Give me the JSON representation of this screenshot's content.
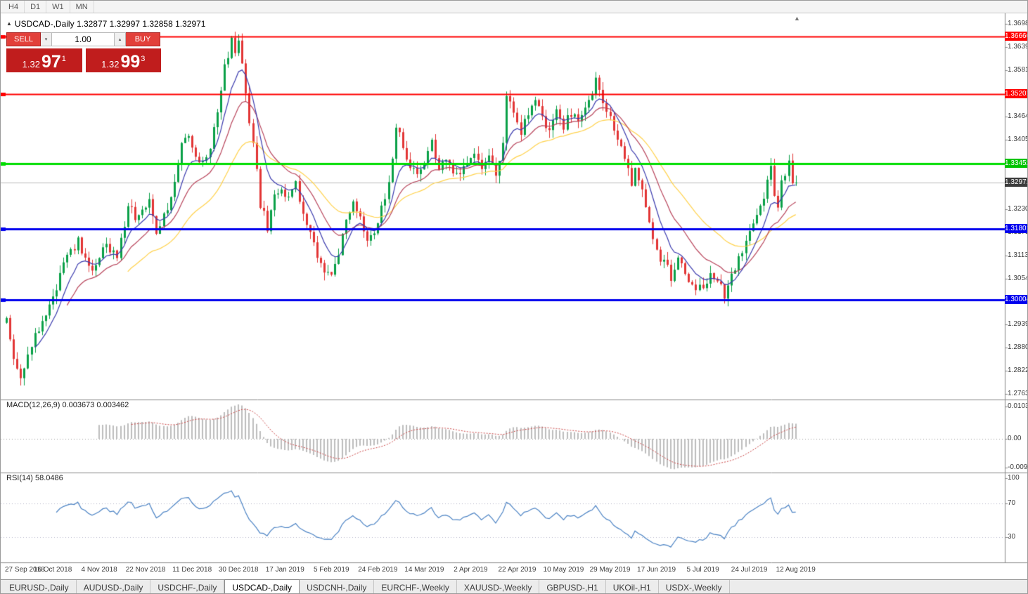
{
  "timeframe_bar": {
    "items": [
      "H4",
      "D1",
      "W1",
      "MN"
    ]
  },
  "chart": {
    "title_marker": "▲",
    "symbol_title": "USDCAD-,Daily",
    "ohlc_text": "1.32877 1.32997 1.32858 1.32971",
    "scroll_marker": "▲"
  },
  "one_click": {
    "sell_label": "SELL",
    "buy_label": "BUY",
    "volume": "1.00",
    "spin_up": "▴",
    "spin_down": "▾",
    "sell_price": {
      "prefix": "1.32",
      "pips": "97",
      "point": "1",
      "full": "1.32971"
    },
    "buy_price": {
      "prefix": "1.32",
      "pips": "99",
      "point": "3",
      "full": "1.32993"
    }
  },
  "price_axis": {
    "ticks": [
      "1.36980",
      "1.36395",
      "1.35810",
      "1.34640",
      "1.34055",
      "1.32300",
      "1.31715",
      "1.31130",
      "1.30545",
      "1.29390",
      "1.28805",
      "1.28220",
      "1.27635"
    ],
    "line_labels": [
      {
        "text": "1.36666",
        "price": 1.36666,
        "color": "#ff0000"
      },
      {
        "text": "1.35201",
        "price": 1.35201,
        "color": "#ff0000"
      },
      {
        "text": "1.33452",
        "price": 1.33452,
        "color": "#00c400"
      },
      {
        "text": "1.32971",
        "price": 1.32971,
        "color": "#3c3c3c"
      },
      {
        "text": "1.31801",
        "price": 1.31801,
        "color": "#0000ee"
      },
      {
        "text": "1.30004",
        "price": 1.30004,
        "color": "#0000ee"
      }
    ]
  },
  "macd_panel": {
    "label": "MACD(12,26,9) 0.003673 0.003462",
    "axis_labels": [
      {
        "text": "0.010311",
        "value": 0.010311
      },
      {
        "text": "0.00",
        "value": 0
      },
      {
        "text": "-0.009207",
        "value": -0.009207
      }
    ]
  },
  "rsi_panel": {
    "label": "RSI(14) 58.0486",
    "axis_labels": [
      {
        "text": "100",
        "value": 100
      },
      {
        "text": "70",
        "value": 70
      },
      {
        "text": "30",
        "value": 30
      }
    ]
  },
  "date_axis": {
    "labels": [
      "27 Sep 2018",
      "16 Oct 2018",
      "4 Nov 2018",
      "22 Nov 2018",
      "11 Dec 2018",
      "30 Dec 2018",
      "17 Jan 2019",
      "5 Feb 2019",
      "24 Feb 2019",
      "14 Mar 2019",
      "2 Apr 2019",
      "22 Apr 2019",
      "10 May 2019",
      "29 May 2019",
      "17 Jun 2019",
      "5 Jul 2019",
      "24 Jul 2019",
      "12 Aug 2019"
    ]
  },
  "bottom_tabs": {
    "active_index": 3,
    "tabs": [
      "EURUSD-,Daily",
      "AUDUSD-,Daily",
      "USDCHF-,Daily",
      "USDCAD-,Daily",
      "USDCNH-,Daily",
      "EURCHF-,Weekly",
      "XAUUSD-,Weekly",
      "GBPUSD-,H1",
      "UKOil-,H1",
      "USDX-,Weekly"
    ]
  },
  "chart_data": {
    "type": "candlestick",
    "symbol": "USDCAD",
    "timeframe": "Daily",
    "ohlc_current": {
      "open": 1.32877,
      "high": 1.32997,
      "low": 1.32858,
      "close": 1.32971
    },
    "bid": 1.32971,
    "ask": 1.32993,
    "ylim": [
      1.27635,
      1.3698
    ],
    "candle_count": 222,
    "candles_per_label": 13,
    "up_color": "#0aa048",
    "down_color": "#e23535",
    "bid_line_color": "#bcbcbc",
    "price_path_anchors": [
      [
        0,
        1.295
      ],
      [
        2,
        1.2845
      ],
      [
        4,
        1.2798
      ],
      [
        8,
        1.2915
      ],
      [
        13,
        1.3012
      ],
      [
        17,
        1.3105
      ],
      [
        20,
        1.3148
      ],
      [
        24,
        1.3062
      ],
      [
        28,
        1.3148
      ],
      [
        31,
        1.3105
      ],
      [
        34,
        1.3238
      ],
      [
        37,
        1.3202
      ],
      [
        40,
        1.3268
      ],
      [
        42,
        1.3175
      ],
      [
        45,
        1.3235
      ],
      [
        47,
        1.3308
      ],
      [
        49,
        1.3388
      ],
      [
        51,
        1.3428
      ],
      [
        53,
        1.337
      ],
      [
        55,
        1.3338
      ],
      [
        57,
        1.3392
      ],
      [
        59,
        1.3482
      ],
      [
        61,
        1.3582
      ],
      [
        63,
        1.3652
      ],
      [
        64,
        1.3612
      ],
      [
        65,
        1.3648
      ],
      [
        66,
        1.3598
      ],
      [
        68,
        1.3455
      ],
      [
        70,
        1.333
      ],
      [
        71,
        1.3242
      ],
      [
        73,
        1.3188
      ],
      [
        75,
        1.3255
      ],
      [
        77,
        1.3292
      ],
      [
        79,
        1.3255
      ],
      [
        81,
        1.3292
      ],
      [
        83,
        1.3228
      ],
      [
        85,
        1.3165
      ],
      [
        87,
        1.3105
      ],
      [
        89,
        1.3075
      ],
      [
        91,
        1.306
      ],
      [
        93,
        1.3125
      ],
      [
        95,
        1.3205
      ],
      [
        97,
        1.3245
      ],
      [
        99,
        1.321
      ],
      [
        101,
        1.3148
      ],
      [
        103,
        1.3172
      ],
      [
        105,
        1.3228
      ],
      [
        107,
        1.3305
      ],
      [
        109,
        1.3432
      ],
      [
        111,
        1.339
      ],
      [
        113,
        1.3342
      ],
      [
        115,
        1.332
      ],
      [
        117,
        1.3352
      ],
      [
        119,
        1.3392
      ],
      [
        121,
        1.3332
      ],
      [
        123,
        1.3362
      ],
      [
        125,
        1.333
      ],
      [
        127,
        1.3312
      ],
      [
        129,
        1.335
      ],
      [
        131,
        1.3372
      ],
      [
        133,
        1.3324
      ],
      [
        135,
        1.3352
      ],
      [
        137,
        1.3318
      ],
      [
        139,
        1.3398
      ],
      [
        140,
        1.3515
      ],
      [
        142,
        1.3462
      ],
      [
        144,
        1.343
      ],
      [
        146,
        1.3472
      ],
      [
        148,
        1.35
      ],
      [
        150,
        1.3455
      ],
      [
        152,
        1.3435
      ],
      [
        154,
        1.347
      ],
      [
        156,
        1.344
      ],
      [
        158,
        1.3475
      ],
      [
        160,
        1.3445
      ],
      [
        162,
        1.3478
      ],
      [
        165,
        1.3558
      ],
      [
        167,
        1.3495
      ],
      [
        169,
        1.3452
      ],
      [
        171,
        1.3402
      ],
      [
        173,
        1.336
      ],
      [
        175,
        1.33
      ],
      [
        176,
        1.3332
      ],
      [
        178,
        1.327
      ],
      [
        180,
        1.3195
      ],
      [
        182,
        1.3125
      ],
      [
        184,
        1.3095
      ],
      [
        186,
        1.3062
      ],
      [
        188,
        1.31
      ],
      [
        190,
        1.3062
      ],
      [
        192,
        1.3032
      ],
      [
        194,
        1.3042
      ],
      [
        195,
        1.3022
      ],
      [
        197,
        1.306
      ],
      [
        199,
        1.3038
      ],
      [
        201,
        1.3016
      ],
      [
        203,
        1.3062
      ],
      [
        205,
        1.3112
      ],
      [
        207,
        1.3142
      ],
      [
        209,
        1.318
      ],
      [
        211,
        1.3235
      ],
      [
        213,
        1.3305
      ],
      [
        214,
        1.3332
      ],
      [
        215,
        1.327
      ],
      [
        216,
        1.3248
      ],
      [
        217,
        1.33
      ],
      [
        219,
        1.3345
      ],
      [
        220,
        1.3292
      ],
      [
        221,
        1.3297
      ]
    ],
    "hlines": [
      {
        "price": 1.36666,
        "color": "#ff0000",
        "width": 2
      },
      {
        "price": 1.35201,
        "color": "#ff0000",
        "width": 2
      },
      {
        "price": 1.33452,
        "color": "#00dd00",
        "width": 3
      },
      {
        "price": 1.31801,
        "color": "#0000ee",
        "width": 3
      },
      {
        "price": 1.30004,
        "color": "#0000ee",
        "width": 3
      }
    ],
    "moving_averages": [
      {
        "period": 34,
        "color": "#ffd24a"
      },
      {
        "period": 17,
        "color": "#b8435a"
      },
      {
        "period": 8,
        "color": "#3a3aae"
      }
    ],
    "macd": {
      "fast": 12,
      "slow": 26,
      "signal": 9,
      "current": 0.003673,
      "current_signal": 0.003462,
      "range": [
        -0.009207,
        0.010311
      ],
      "histogram_color": "#bdbdbd",
      "signal_color": "#cc4444"
    },
    "rsi": {
      "period": 14,
      "current": 58.0486,
      "color": "#4a82c4",
      "levels": [
        70,
        30
      ],
      "range": [
        0,
        100
      ]
    }
  }
}
